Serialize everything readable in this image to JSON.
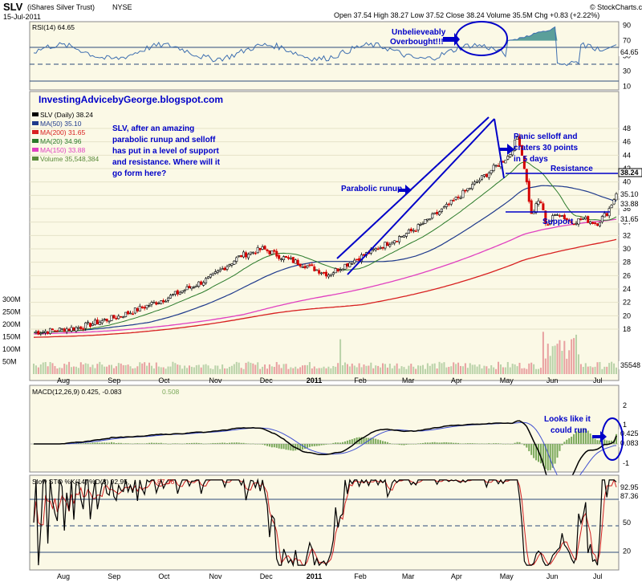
{
  "header": {
    "symbol": "SLV",
    "name": "(iShares Silver Trust)",
    "exchange": "NYSE",
    "date": "15-Jul-2011",
    "ohlc": "Open 37.54  High 38.27  Low 37.52  Close 38.24  Volume 35.5M  Chg +0.83 (+2.22%)",
    "brand": "© StockCharts.com"
  },
  "blog_text": "InvestingAdvicebyGeorge.blogspot.com",
  "colors": {
    "panel_bg": "#fbf9e6",
    "candle_up": "#000000",
    "candle_down": "#d40000",
    "ma50": "#1f3a8c",
    "ma200": "#d82020",
    "ma20": "#2a7a2a",
    "ma150": "#e040c0",
    "volume": "#b9d2a8",
    "volume_down": "#e8a0a0",
    "annotation": "#0000c8",
    "rsi_line": "#3e6fb0",
    "rsi_fill": "#3e8f8c",
    "macd_line": "#000000",
    "signal_line": "#4050d0",
    "histogram": "#7aa85a",
    "stoch_k": "#000000",
    "stoch_d": "#d02020"
  },
  "x_labels": [
    "Aug",
    "Sep",
    "Oct",
    "Nov",
    "Dec",
    "2011",
    "Feb",
    "Mar",
    "Apr",
    "May",
    "Jun",
    "Jul"
  ],
  "rsi": {
    "label": "RSI(14) 64.65",
    "ticks": [
      "90",
      "70",
      "50",
      "30",
      "10"
    ],
    "current": "64.65"
  },
  "price": {
    "legend": [
      {
        "text": "SLV (Daily) 38.24",
        "color": "#000000"
      },
      {
        "text": "MA(50) 35.10",
        "color": "#1f3a8c"
      },
      {
        "text": "MA(200) 31.65",
        "color": "#d82020"
      },
      {
        "text": "MA(20) 34.96",
        "color": "#2a7a2a"
      },
      {
        "text": "MA(150) 33.88",
        "color": "#e040c0"
      },
      {
        "text": "Volume 35,548,384",
        "color": "#5a8a3a"
      }
    ],
    "ticks": [
      "48",
      "46",
      "44",
      "42",
      "40",
      "38",
      "36",
      "34",
      "32",
      "30",
      "28",
      "26",
      "24",
      "22",
      "20",
      "18"
    ],
    "volume_ticks": [
      "300M",
      "250M",
      "200M",
      "150M",
      "100M",
      "50M"
    ],
    "tags": [
      "38.24",
      "35.10",
      "33.88",
      "31.65",
      "35548"
    ]
  },
  "annotations": {
    "overbought_1": "Unbelieveably",
    "overbought_2": "Overbought!!!",
    "story_1": "SLV, after an amazing",
    "story_2": "parabolic runup and selloff",
    "story_3": "has put in a level of support",
    "story_4": "and resistance. Where will it",
    "story_5": "go form here?",
    "parabolic": "Parabolic runup",
    "panic_1": "Panic selloff and",
    "panic_2": "craters 30 points",
    "panic_3": "in 5 days",
    "resistance": "Resistance",
    "support": "Support",
    "macd_1": "Looks like it",
    "macd_2": "could run"
  },
  "macd": {
    "label_main": "MACD(12,26,9) 0.425, -0.083",
    "label_hist": "0.508",
    "ticks": [
      "2",
      "1",
      "0",
      "-1"
    ],
    "tags": [
      "0.425",
      "0.083"
    ]
  },
  "stoch": {
    "label_main": "Slow STO %K(14) %D(3) 92.95,",
    "label_d": "87.36",
    "ticks": [
      "80",
      "50",
      "20"
    ],
    "tags": [
      "92.95",
      "87.36"
    ]
  },
  "chart_data": {
    "type": "candlestick",
    "title": "SLV (iShares Silver Trust) NYSE",
    "x_range": [
      "Jul-2010",
      "15-Jul-2011"
    ],
    "price_axis": [
      18,
      48
    ],
    "price": {
      "month_points": [
        "Jul",
        "Aug",
        "Sep",
        "Oct",
        "Nov",
        "Dec",
        "Jan",
        "Feb",
        "Mar",
        "Apr",
        "May",
        "Jun",
        "Jul"
      ],
      "close_approx": [
        17.5,
        18.5,
        20.5,
        23.0,
        26.0,
        29.5,
        27.5,
        30.5,
        36.0,
        45.0,
        34.0,
        34.5,
        38.24
      ]
    },
    "moving_averages": {
      "MA(50)": 35.1,
      "MA(200)": 31.65,
      "MA(20)": 34.96,
      "MA(150)": 33.88
    },
    "volume_last": 35548384,
    "rsi": {
      "period": 14,
      "last": 64.65,
      "axis": [
        10,
        90
      ]
    },
    "macd": {
      "params": "12,26,9",
      "macd": 0.425,
      "signal": -0.083,
      "histogram": 0.508
    },
    "stochastic": {
      "k": 92.95,
      "d": 87.36,
      "params": "%K(14) %D(3)"
    },
    "levels": {
      "resistance": 38.0,
      "support": 32.7
    }
  }
}
